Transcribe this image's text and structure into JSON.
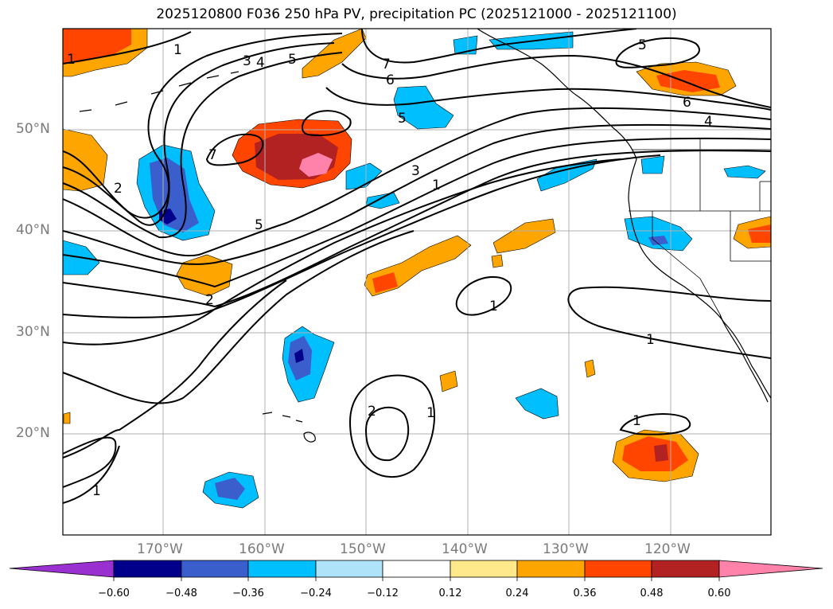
{
  "title": "2025120800 F036 250 hPa PV, precipitation PC (2025121000 - 2025121100)",
  "lat_labels": [
    "50°N",
    "40°N",
    "30°N",
    "20°N"
  ],
  "lon_labels": [
    "170°W",
    "160°W",
    "150°W",
    "140°W",
    "130°W",
    "120°W"
  ],
  "colorbar": {
    "ticks": [
      "−0.60",
      "−0.48",
      "−0.36",
      "−0.24",
      "−0.12",
      "0.12",
      "0.24",
      "0.36",
      "0.48",
      "0.60"
    ],
    "colors": [
      "#9b30d0",
      "#00008b",
      "#3a5fcd",
      "#00bfff",
      "#aee3fa",
      "#ffffff",
      "#ffe98a",
      "#ffa500",
      "#ff4500",
      "#b22222",
      "#ff82ab"
    ]
  },
  "contour_labels": [
    "1",
    "1",
    "3",
    "4",
    "5",
    "7",
    "6",
    "5",
    "6",
    "4",
    "5",
    "7",
    "2",
    "5",
    "3",
    "1",
    "2",
    "1",
    "1",
    "2",
    "1",
    "1",
    "1"
  ],
  "colors": {
    "contour": "#000000",
    "grid": "#b0b0b0",
    "coast": "#000000"
  }
}
